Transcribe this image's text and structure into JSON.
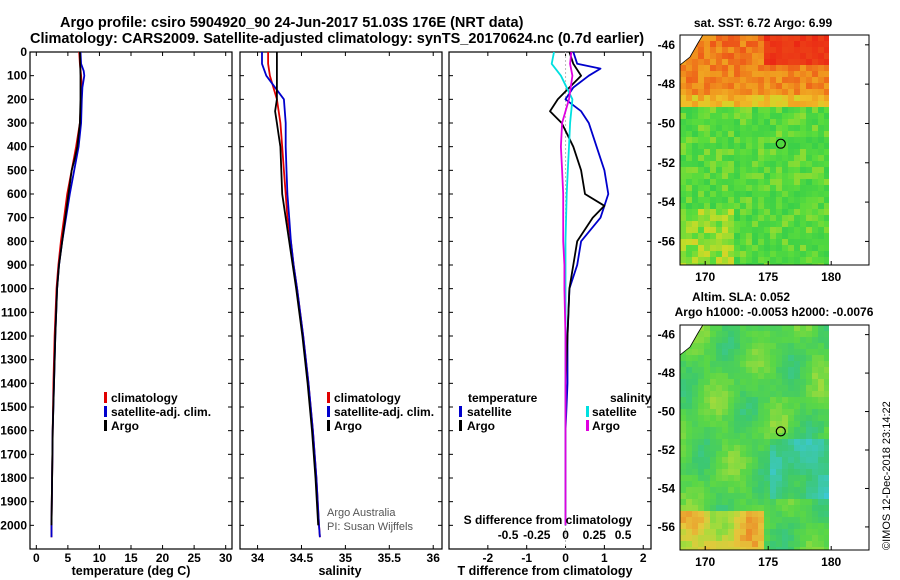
{
  "header": {
    "line1": "Argo profile: csiro 5904920_90 24-Jun-2017 51.03S 176E (NRT data)",
    "line2": "Climatology: CARS2009. Satellite-adjusted climatology: synTS_20170624.nc (0.7d earlier)"
  },
  "colors": {
    "climatology": "#e00000",
    "satellite": "#0000cc",
    "argo": "#000000",
    "sal_satellite": "#00e0e0",
    "sal_argo": "#e000e0"
  },
  "credit": {
    "line1": "Argo Australia",
    "line2": "PI: Susan Wijffels"
  },
  "footer": "©IMOS 12-Dec-2018 23:14:22",
  "chart_data": [
    {
      "type": "line",
      "xlabel": "temperature (deg C)",
      "xlim": [
        -1,
        31
      ],
      "ylim": [
        2100,
        0
      ],
      "xticks": [
        "0",
        "5",
        "10",
        "15",
        "20",
        "25",
        "30"
      ],
      "yticks": [
        "0",
        "100",
        "200",
        "300",
        "400",
        "500",
        "600",
        "700",
        "800",
        "900",
        "1000",
        "1100",
        "1200",
        "1300",
        "1400",
        "1500",
        "1600",
        "1700",
        "1800",
        "1900",
        "2000"
      ],
      "legend": [
        "climatology",
        "satellite-adj. clim.",
        "Argo"
      ],
      "series": [
        {
          "name": "climatology",
          "color": "#e00000",
          "depth": [
            0,
            50,
            100,
            150,
            200,
            300,
            400,
            500,
            600,
            700,
            800,
            900,
            1000,
            1200,
            1400,
            1600,
            1800,
            2000,
            2050
          ],
          "values": [
            6.8,
            6.9,
            7.1,
            7.2,
            7.1,
            6.9,
            6.3,
            5.6,
            4.9,
            4.4,
            3.9,
            3.5,
            3.2,
            2.9,
            2.7,
            2.6,
            2.5,
            2.4,
            2.4
          ]
        },
        {
          "name": "satellite-adj. clim.",
          "color": "#0000cc",
          "depth": [
            0,
            50,
            80,
            100,
            150,
            200,
            300,
            400,
            500,
            600,
            700,
            800,
            900,
            1000,
            1200,
            1400,
            1600,
            1800,
            2000,
            2050
          ],
          "values": [
            7.0,
            7.1,
            7.5,
            7.6,
            7.3,
            7.2,
            7.1,
            6.7,
            6.0,
            5.3,
            4.7,
            4.1,
            3.6,
            3.3,
            3.0,
            2.8,
            2.6,
            2.5,
            2.4,
            2.4
          ]
        },
        {
          "name": "Argo",
          "color": "#000000",
          "depth": [
            0,
            100,
            200,
            300,
            400,
            450,
            500,
            600,
            700,
            800,
            900,
            1000,
            1200,
            1400,
            1600,
            1800,
            2000
          ],
          "values": [
            6.9,
            7.0,
            7.0,
            6.9,
            6.5,
            6.1,
            5.6,
            5.1,
            4.6,
            4.1,
            3.6,
            3.3,
            3.0,
            2.8,
            2.6,
            2.5,
            2.4
          ]
        }
      ]
    },
    {
      "type": "line",
      "xlabel": "salinity",
      "xlim": [
        33.8,
        36.1
      ],
      "ylim": [
        2100,
        0
      ],
      "xticks": [
        "34",
        "34.5",
        "35",
        "35.5",
        "36"
      ],
      "legend": [
        "climatology",
        "satellite-adj. clim.",
        "Argo"
      ],
      "series": [
        {
          "name": "climatology",
          "color": "#e00000",
          "depth": [
            0,
            50,
            100,
            200,
            300,
            400,
            500,
            600,
            700,
            800,
            900,
            1000,
            1200,
            1400,
            1600,
            1800,
            2000,
            2050
          ],
          "values": [
            34.12,
            34.12,
            34.14,
            34.22,
            34.26,
            34.28,
            34.3,
            34.32,
            34.34,
            34.38,
            34.41,
            34.45,
            34.52,
            34.58,
            34.63,
            34.67,
            34.7,
            34.71
          ]
        },
        {
          "name": "satellite-adj. clim.",
          "color": "#0000cc",
          "depth": [
            0,
            50,
            100,
            200,
            300,
            400,
            500,
            600,
            700,
            800,
            900,
            1000,
            1200,
            1400,
            1600,
            1800,
            2000,
            2050
          ],
          "values": [
            34.05,
            34.05,
            34.1,
            34.3,
            34.32,
            34.32,
            34.33,
            34.34,
            34.36,
            34.38,
            34.41,
            34.45,
            34.52,
            34.58,
            34.63,
            34.67,
            34.7,
            34.71
          ]
        },
        {
          "name": "Argo",
          "color": "#000000",
          "depth": [
            0,
            100,
            200,
            250,
            300,
            350,
            400,
            500,
            600,
            700,
            800,
            900,
            1000,
            1200,
            1400,
            1600,
            1800,
            2000
          ],
          "values": [
            34.22,
            34.22,
            34.22,
            34.2,
            34.22,
            34.24,
            34.26,
            34.27,
            34.28,
            34.32,
            34.36,
            34.4,
            34.44,
            34.51,
            34.57,
            34.62,
            34.66,
            34.69
          ]
        }
      ]
    },
    {
      "type": "line",
      "xlabel": "T difference from climatology",
      "x2label": "S difference from climatology",
      "xlim": [
        -3,
        2.2
      ],
      "ylim": [
        2100,
        0
      ],
      "xticks": [
        "-2",
        "-1",
        "0",
        "1",
        "2"
      ],
      "x2ticks": [
        "-0.5",
        "-0.25",
        "0",
        "0.25",
        "0.5"
      ],
      "legend_left_title": "temperature",
      "legend_right_title": "salinity",
      "legend_left": [
        "satellite",
        "Argo"
      ],
      "legend_right": [
        "satellite",
        "Argo"
      ],
      "series": [
        {
          "name": "satellite",
          "quantity": "temperature",
          "color": "#0000cc",
          "depth": [
            0,
            50,
            70,
            100,
            150,
            200,
            250,
            300,
            400,
            500,
            600,
            700,
            800,
            900,
            1000,
            1200,
            1400,
            1600,
            1800,
            2000
          ],
          "values": [
            0.2,
            0.3,
            0.9,
            0.6,
            0.2,
            0.0,
            0.4,
            0.6,
            0.8,
            1.0,
            1.1,
            0.9,
            0.4,
            0.3,
            0.1,
            0.05,
            0.05,
            0.0,
            0.0,
            0.0
          ]
        },
        {
          "name": "Argo",
          "quantity": "temperature",
          "color": "#000000",
          "depth": [
            0,
            50,
            100,
            150,
            200,
            250,
            300,
            400,
            500,
            600,
            650,
            700,
            800,
            900,
            1000,
            1200,
            1400,
            1600,
            1800,
            2000
          ],
          "values": [
            0.1,
            0.2,
            0.4,
            0.1,
            -0.2,
            -0.4,
            -0.1,
            0.2,
            0.4,
            0.5,
            1.0,
            0.7,
            0.3,
            0.2,
            0.1,
            0.05,
            0.0,
            0.0,
            0.0,
            0.0
          ]
        },
        {
          "name": "satellite",
          "quantity": "salinity",
          "color": "#00e0e0",
          "depth": [
            0,
            50,
            100,
            200,
            300,
            400,
            500,
            600,
            800,
            1000,
            1200,
            1400,
            1600,
            1800,
            2000
          ],
          "values": [
            -0.1,
            -0.12,
            -0.04,
            0.06,
            0.04,
            0.03,
            0.02,
            0.01,
            0.0,
            0.0,
            0.0,
            0.0,
            0.0,
            0.0,
            0.0
          ]
        },
        {
          "name": "Argo",
          "quantity": "salinity",
          "color": "#e000e0",
          "depth": [
            0,
            50,
            100,
            200,
            300,
            400,
            500,
            600,
            700,
            800,
            900,
            1000,
            1200,
            1400,
            1600,
            1800,
            2000
          ],
          "values": [
            0.05,
            0.04,
            0.06,
            0.03,
            -0.03,
            -0.04,
            -0.03,
            -0.02,
            -0.02,
            -0.02,
            -0.01,
            -0.01,
            0.0,
            0.0,
            0.0,
            0.0,
            0.0
          ]
        }
      ]
    },
    {
      "type": "heatmap",
      "title": "sat. SST: 6.72 Argo: 6.99",
      "xticks": [
        "170",
        "175",
        "180"
      ],
      "yticks": [
        "-46",
        "-48",
        "-50",
        "-52",
        "-54",
        "-56"
      ],
      "xlim": [
        168,
        183
      ],
      "ylim": [
        -57.2,
        -45.5
      ],
      "marker": {
        "lon": 176,
        "lat": -51.03
      }
    },
    {
      "type": "heatmap",
      "title": "Altim. SLA: 0.052",
      "subtitle": "Argo h1000: -0.0053 h2000: -0.0076",
      "xticks": [
        "170",
        "175",
        "180"
      ],
      "yticks": [
        "-46",
        "-48",
        "-50",
        "-52",
        "-54",
        "-56"
      ],
      "xlim": [
        168,
        183
      ],
      "ylim": [
        -57.2,
        -45.5
      ],
      "marker": {
        "lon": 176,
        "lat": -51.03
      }
    }
  ]
}
